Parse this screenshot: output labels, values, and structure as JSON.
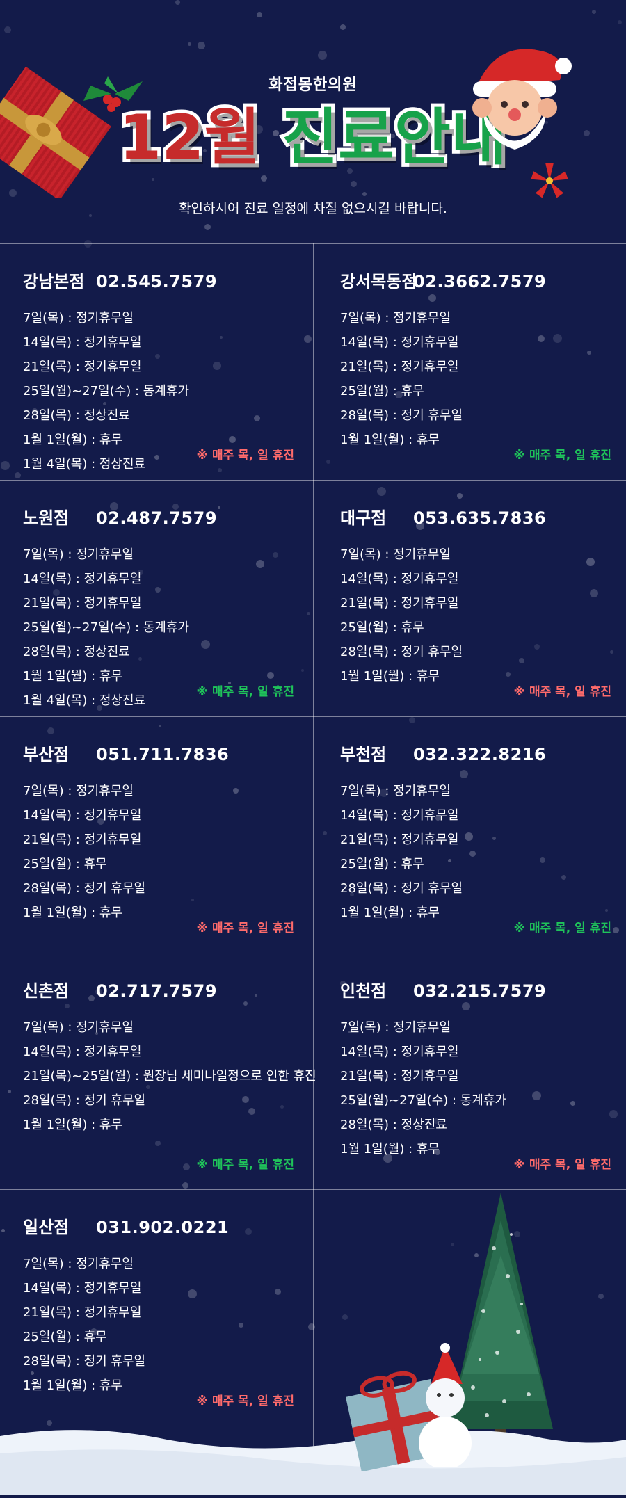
{
  "header": {
    "clinic_name": "화접몽한의원",
    "title_number": "12월",
    "title_word": "진료안내",
    "subtitle": "확인하시어 진료 일정에 차질 없으시길 바랍니다."
  },
  "colors": {
    "background": "#131b4a",
    "title_red": "#c62b2b",
    "title_green": "#17a24a",
    "note_red": "#ff6b6b",
    "note_green": "#1fc35a"
  },
  "branches": [
    {
      "name": "강남본점",
      "phone": "02.545.7579",
      "items": [
        "7일(목) : 정기휴무일",
        "14일(목) : 정기휴무일",
        "21일(목) : 정기휴무일",
        "25일(월)~27일(수) : 동계휴가",
        "28일(목) : 정상진료",
        "1월 1일(월) : 휴무",
        "1월 4일(목) : 정상진료"
      ],
      "note": "※ 매주 목, 일 휴진",
      "note_color": "red"
    },
    {
      "name": "강서목동점",
      "phone": "02.3662.7579",
      "items": [
        "7일(목) : 정기휴무일",
        "14일(목) : 정기휴무일",
        "21일(목) : 정기휴무일",
        "25일(월) : 휴무",
        "28일(목) : 정기 휴무일",
        "1월 1일(월) : 휴무"
      ],
      "note": "※ 매주 목, 일 휴진",
      "note_color": "green"
    },
    {
      "name": "노원점",
      "phone": "02.487.7579",
      "items": [
        "7일(목) : 정기휴무일",
        "14일(목) : 정기휴무일",
        "21일(목) : 정기휴무일",
        "25일(월)~27일(수) : 동계휴가",
        "28일(목) : 정상진료",
        "1월 1일(월) : 휴무",
        "1월 4일(목) : 정상진료"
      ],
      "note": "※ 매주 목, 일 휴진",
      "note_color": "green"
    },
    {
      "name": "대구점",
      "phone": "053.635.7836",
      "items": [
        "7일(목) : 정기휴무일",
        "14일(목) : 정기휴무일",
        "21일(목) : 정기휴무일",
        "25일(월) : 휴무",
        "28일(목) : 정기 휴무일",
        "1월 1일(월) : 휴무"
      ],
      "note": "※ 매주 목, 일 휴진",
      "note_color": "red"
    },
    {
      "name": "부산점",
      "phone": "051.711.7836",
      "items": [
        "7일(목) : 정기휴무일",
        "14일(목) : 정기휴무일",
        "21일(목) : 정기휴무일",
        "25일(월) : 휴무",
        "28일(목) : 정기 휴무일",
        "1월 1일(월) : 휴무"
      ],
      "note": "※ 매주 목, 일 휴진",
      "note_color": "red"
    },
    {
      "name": "부천점",
      "phone": "032.322.8216",
      "items": [
        "7일(목) : 정기휴무일",
        "14일(목) : 정기휴무일",
        "21일(목) : 정기휴무일",
        "25일(월) : 휴무",
        "28일(목) : 정기 휴무일",
        "1월 1일(월) : 휴무"
      ],
      "note": "※ 매주 목, 일 휴진",
      "note_color": "green"
    },
    {
      "name": "신촌점",
      "phone": "02.717.7579",
      "items": [
        "7일(목) : 정기휴무일",
        "14일(목) : 정기휴무일",
        "21일(목)~25일(월) : 원장님 세미나일정으로 인한 휴진",
        "28일(목) : 정기 휴무일",
        "1월 1일(월) : 휴무"
      ],
      "note": "※ 매주 목, 일 휴진",
      "note_color": "green"
    },
    {
      "name": "인천점",
      "phone": "032.215.7579",
      "items": [
        "7일(목) : 정기휴무일",
        "14일(목) : 정기휴무일",
        "21일(목) : 정기휴무일",
        "25일(월)~27일(수) : 동계휴가",
        "28일(목) : 정상진료",
        "1월 1일(월) : 휴무"
      ],
      "note": "※ 매주 목, 일 휴진",
      "note_color": "red"
    },
    {
      "name": "일산점",
      "phone": "031.902.0221",
      "items": [
        "7일(목) : 정기휴무일",
        "14일(목) : 정기휴무일",
        "21일(목) : 정기휴무일",
        "25일(월) : 휴무",
        "28일(목) : 정기 휴무일",
        "1월 1일(월) : 휴무"
      ],
      "note": "※ 매주 목, 일 휴진",
      "note_color": "red"
    }
  ]
}
